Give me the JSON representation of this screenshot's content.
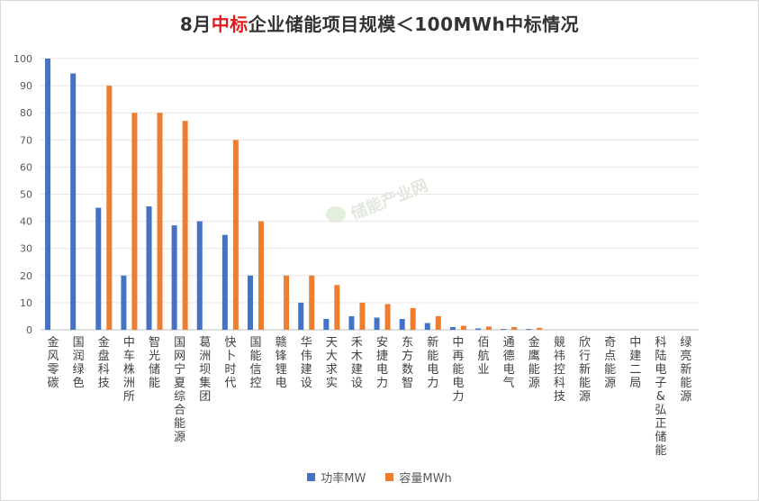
{
  "chart_data": {
    "type": "bar",
    "title_parts": [
      "8月",
      "中标",
      "企业储能项目规模＜100MWh中标情况"
    ],
    "xlabel": "",
    "ylabel": "",
    "ylim": [
      0,
      100
    ],
    "yticks": [
      0,
      10,
      20,
      30,
      40,
      50,
      60,
      70,
      80,
      90,
      100
    ],
    "grid": true,
    "legend_position": "bottom",
    "categories": [
      "金风零碳",
      "国润绿色",
      "金盘科技",
      "中车株洲所",
      "智光储能",
      "国网宁夏综合能源",
      "葛洲坝集团",
      "快卜时代",
      "国能信控",
      "赣锋锂电",
      "华伟建设",
      "天大求实",
      "禾木建设",
      "安捷电力",
      "东方数智",
      "新能电力",
      "中再能电力",
      "佰航业",
      "通德电气",
      "金鹰能源",
      "競祎控科技",
      "欣行新能源",
      "奇点能源",
      "中建二局",
      "科陆电子&弘正储能",
      "绿亮新能源"
    ],
    "series": [
      {
        "name": "功率MW",
        "color": "#4472c4",
        "values": [
          100,
          94.5,
          45,
          20,
          45.5,
          38.5,
          40,
          35,
          20,
          0,
          10,
          4,
          5,
          4.5,
          4,
          2.5,
          1,
          0.5,
          0.3,
          0.3,
          0,
          0,
          0,
          0,
          0,
          0
        ]
      },
      {
        "name": "容量MWh",
        "color": "#ed7d31",
        "values": [
          0,
          0,
          90,
          80,
          80,
          77,
          0,
          70,
          40,
          20,
          20,
          16.5,
          10,
          9.5,
          8,
          5,
          1.5,
          1.2,
          1,
          0.7,
          0,
          0,
          0,
          0,
          0,
          0
        ]
      }
    ],
    "watermark": "储能产业网"
  }
}
